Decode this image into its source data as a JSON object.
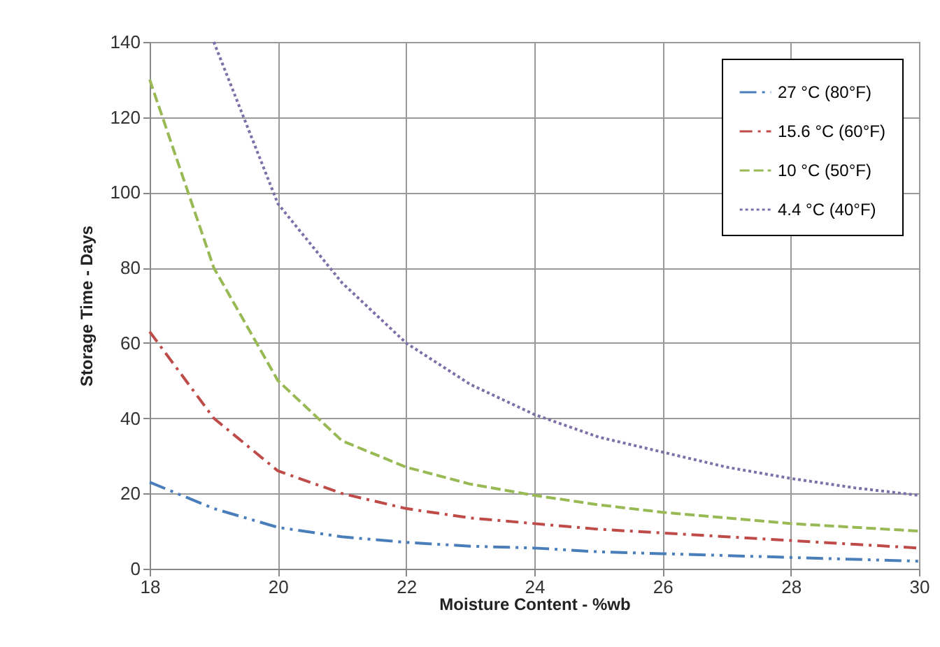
{
  "chart_data": {
    "type": "line",
    "xlabel": "Moisture Content - %wb",
    "ylabel": "Storage Time - Days",
    "x": [
      18,
      19,
      20,
      21,
      22,
      23,
      24,
      25,
      26,
      27,
      28,
      29,
      30
    ],
    "series": [
      {
        "name": "27 °C (80°F)",
        "color": "#4a7ebb",
        "line_style": "dashdot2",
        "values": [
          23,
          16,
          11,
          8.5,
          7,
          6,
          5.5,
          4.5,
          4,
          3.5,
          3,
          2.5,
          2
        ]
      },
      {
        "name": "15.6 °C (60°F)",
        "color": "#be4b48",
        "line_style": "dashdot",
        "values": [
          63,
          40,
          26,
          20,
          16,
          13.5,
          12,
          10.5,
          9.5,
          8.5,
          7.5,
          6.5,
          5.5
        ]
      },
      {
        "name": "10 °C (50°F)",
        "color": "#98b954",
        "line_style": "dashed",
        "values": [
          130,
          80,
          50,
          34,
          27,
          22.5,
          19.5,
          17,
          15,
          13.5,
          12,
          11,
          10
        ]
      },
      {
        "name": "4.4 °C (40°F)",
        "color": "#7e6fa8",
        "line_style": "dotted",
        "values": [
          null,
          140,
          97,
          76,
          60,
          49,
          41,
          35,
          31,
          27,
          24,
          21.5,
          19.5
        ]
      }
    ],
    "xlim": [
      18,
      30
    ],
    "xticks": [
      18,
      20,
      22,
      24,
      26,
      28,
      30
    ],
    "ylim": [
      0,
      140
    ],
    "yticks": [
      0,
      20,
      40,
      60,
      80,
      100,
      120,
      140
    ],
    "grid": true,
    "legend": "top right",
    "marker": "none"
  }
}
